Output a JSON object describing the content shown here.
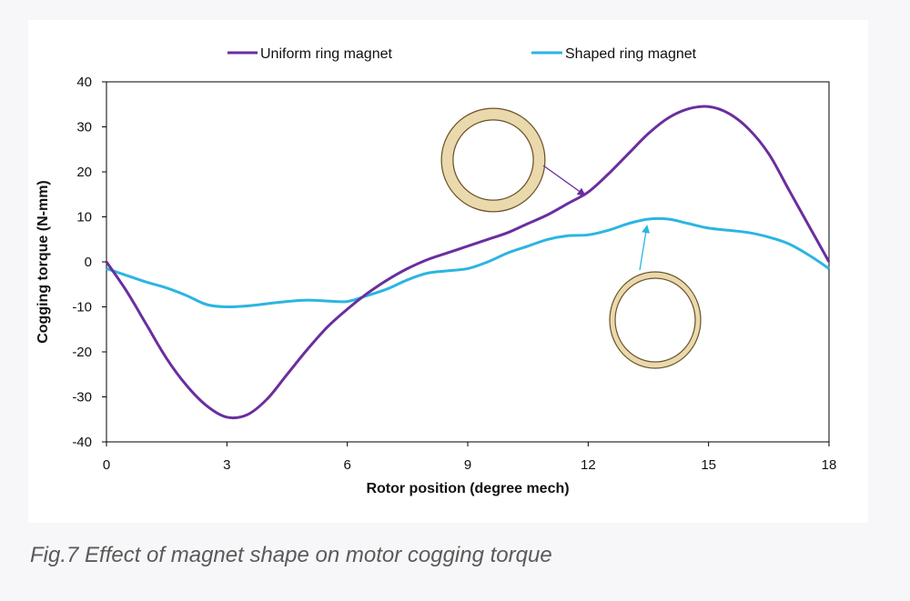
{
  "caption": "Fig.7 Effect of magnet shape on motor cogging torque",
  "chart_data": {
    "type": "line",
    "xlabel": "Rotor position (degree mech)",
    "ylabel": "Cogging torque (N-mm)",
    "xlim": [
      0,
      18
    ],
    "ylim": [
      -40,
      40
    ],
    "xticks": [
      "0",
      "3",
      "6",
      "9",
      "12",
      "15",
      "18"
    ],
    "yticks": [
      "40",
      "30",
      "20",
      "10",
      "0",
      "-10",
      "-20",
      "-30",
      "-40"
    ],
    "grid": false,
    "legend_position": "top",
    "series": [
      {
        "name": "Uniform ring magnet",
        "color": "#6a2e9e",
        "x": [
          0,
          0.5,
          1,
          1.5,
          2,
          2.5,
          3,
          3.5,
          4,
          4.5,
          5,
          5.5,
          6,
          6.5,
          7,
          7.5,
          8,
          8.5,
          9,
          9.5,
          10,
          10.5,
          11,
          11.5,
          12,
          12.5,
          13,
          13.5,
          14,
          14.5,
          15,
          15.5,
          16,
          16.5,
          17,
          17.5,
          18
        ],
        "y": [
          0,
          -6.5,
          -14,
          -21.5,
          -27.5,
          -32,
          -34.5,
          -34,
          -30.5,
          -25,
          -19.5,
          -14.5,
          -10.5,
          -7,
          -4,
          -1.5,
          0.5,
          2,
          3.5,
          5,
          6.5,
          8.5,
          10.5,
          13,
          15.5,
          19.5,
          24,
          28.5,
          32,
          34,
          34.5,
          33,
          29.5,
          24,
          16,
          8,
          0
        ]
      },
      {
        "name": "Shaped ring magnet",
        "color": "#2bb5e3",
        "x": [
          0,
          0.5,
          1,
          1.5,
          2,
          2.5,
          3,
          3.5,
          4,
          4.5,
          5,
          5.5,
          6,
          6.5,
          7,
          7.5,
          8,
          8.5,
          9,
          9.5,
          10,
          10.5,
          11,
          11.5,
          12,
          12.5,
          13,
          13.5,
          14,
          14.5,
          15,
          15.5,
          16,
          16.5,
          17,
          17.5,
          18
        ],
        "y": [
          -1.5,
          -3,
          -4.5,
          -5.8,
          -7.5,
          -9.5,
          -10,
          -9.8,
          -9.3,
          -8.8,
          -8.5,
          -8.7,
          -8.8,
          -7.5,
          -6,
          -4,
          -2.5,
          -2,
          -1.5,
          0,
          2,
          3.5,
          5,
          5.8,
          6,
          7,
          8.5,
          9.5,
          9.5,
          8.5,
          7.5,
          7,
          6.5,
          5.5,
          4,
          1.5,
          -1.5
        ]
      }
    ],
    "annotations": [
      {
        "type": "ring-icon",
        "shape": "uniform",
        "points_to": "Uniform ring magnet",
        "target": [
          12,
          15
        ]
      },
      {
        "type": "ring-icon",
        "shape": "shaped",
        "points_to": "Shaped ring magnet",
        "target": [
          14.5,
          8.8
        ]
      }
    ]
  },
  "colors": {
    "ring_fill": "#ead9ad",
    "ring_stroke": "#6b5328",
    "axis": "#000000"
  }
}
